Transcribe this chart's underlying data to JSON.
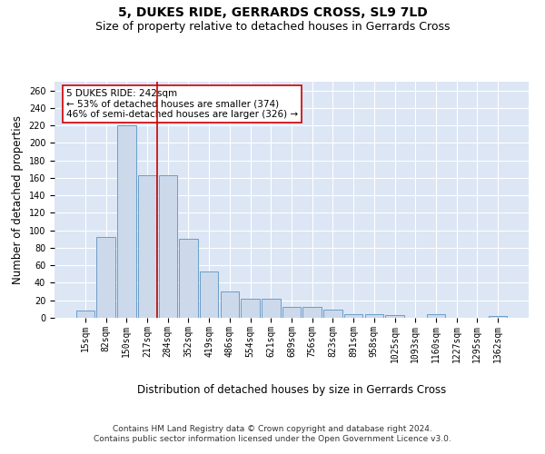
{
  "title": "5, DUKES RIDE, GERRARDS CROSS, SL9 7LD",
  "subtitle": "Size of property relative to detached houses in Gerrards Cross",
  "xlabel": "Distribution of detached houses by size in Gerrards Cross",
  "ylabel": "Number of detached properties",
  "bar_color": "#ccd9eb",
  "bar_edge_color": "#6b9dc8",
  "background_color": "#dce6f5",
  "categories": [
    "15sqm",
    "82sqm",
    "150sqm",
    "217sqm",
    "284sqm",
    "352sqm",
    "419sqm",
    "486sqm",
    "554sqm",
    "621sqm",
    "689sqm",
    "756sqm",
    "823sqm",
    "891sqm",
    "958sqm",
    "1025sqm",
    "1093sqm",
    "1160sqm",
    "1227sqm",
    "1295sqm",
    "1362sqm"
  ],
  "values": [
    8,
    92,
    220,
    163,
    163,
    90,
    53,
    30,
    22,
    22,
    12,
    12,
    9,
    4,
    4,
    3,
    0,
    4,
    0,
    0,
    2
  ],
  "vline_x": 3.5,
  "vline_color": "#cc0000",
  "annotation_text": "5 DUKES RIDE: 242sqm\n← 53% of detached houses are smaller (374)\n46% of semi-detached houses are larger (326) →",
  "ylim": [
    0,
    270
  ],
  "yticks": [
    0,
    20,
    40,
    60,
    80,
    100,
    120,
    140,
    160,
    180,
    200,
    220,
    240,
    260
  ],
  "footnote": "Contains HM Land Registry data © Crown copyright and database right 2024.\nContains public sector information licensed under the Open Government Licence v3.0.",
  "title_fontsize": 10,
  "subtitle_fontsize": 9,
  "axis_label_fontsize": 8.5,
  "tick_fontsize": 7,
  "annotation_fontsize": 7.5,
  "footnote_fontsize": 6.5
}
